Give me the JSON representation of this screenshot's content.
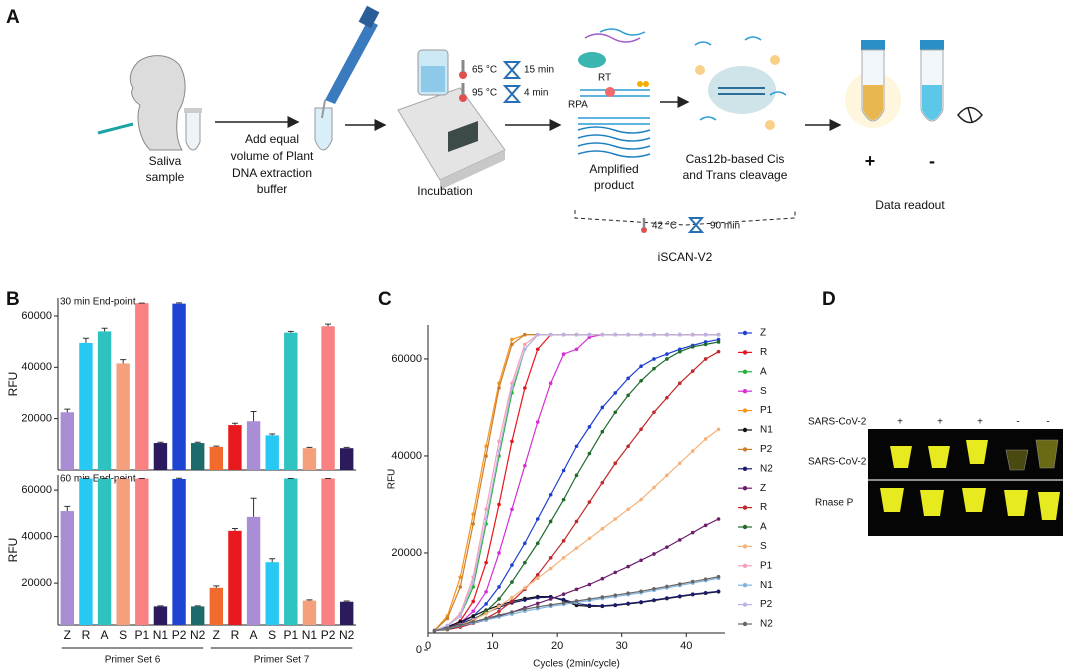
{
  "panel_a": {
    "label": "A",
    "saliva": [
      "Saliva",
      "sample"
    ],
    "buffer_text": [
      "Add equal",
      "volume of Plant",
      "DNA extraction",
      "buffer"
    ],
    "incubation": "Incubation",
    "temps": [
      {
        "temp": "65 °C",
        "time": "15 min"
      },
      {
        "temp": "95 °C",
        "time": "4 min"
      }
    ],
    "rt": "RT",
    "rpa": "RPA",
    "amplified": [
      "Amplified",
      "product"
    ],
    "cas": [
      "Cas12b-based Cis",
      "and Trans cleavage"
    ],
    "readout_signs": [
      "+",
      "-"
    ],
    "readout": "Data readout",
    "isothermal": {
      "temp": "42 °C",
      "time": "90 min"
    },
    "method": "iSCAN-V2"
  },
  "chart_data": [
    {
      "type": "bar",
      "panel": "B",
      "subtitle": "30 min End-point",
      "ylabel": "RFU",
      "ylim": [
        0,
        67000
      ],
      "yticks": [
        20000,
        40000,
        60000
      ],
      "series": [
        {
          "values": [
            22500,
            49500,
            54000,
            41500,
            65000,
            10500,
            64800,
            10500
          ],
          "errors": [
            1200,
            1800,
            1200,
            1500,
            0,
            300,
            300,
            300
          ],
          "colors": [
            "#a98ed6",
            "#27c8f2",
            "#2ec3c0",
            "#f4a07c",
            "#f98181",
            "#2b1a5c",
            "#1e44d4",
            "#1c6a6a"
          ]
        },
        {
          "values": [
            9000,
            17500,
            19000,
            13500,
            53500,
            8500,
            56000,
            8500
          ],
          "errors": [
            300,
            700,
            3800,
            500,
            500,
            300,
            800,
            300
          ],
          "colors": [
            "#f36b2c",
            "#e81a1e",
            "#a98ed6",
            "#27c8f2",
            "#2ec3c0",
            "#f4a07c",
            "#f98181",
            "#2b1a5c"
          ]
        }
      ]
    },
    {
      "type": "bar",
      "subtitle": "60 min End-point",
      "ylabel": "RFU",
      "ylim": [
        2000,
        66500
      ],
      "yticks": [
        20000,
        40000,
        60000
      ],
      "categories": [
        "Z",
        "R",
        "A",
        "S",
        "P1",
        "N1",
        "P2",
        "N2"
      ],
      "series": [
        {
          "name": "Primer Set 6",
          "values": [
            51000,
            65000,
            65000,
            65000,
            65000,
            10000,
            64800,
            10000
          ],
          "errors": [
            2000,
            0,
            0,
            0,
            0,
            200,
            300,
            200
          ],
          "colors": [
            "#a98ed6",
            "#27c8f2",
            "#2ec3c0",
            "#f4a07c",
            "#f98181",
            "#2b1a5c",
            "#1e44d4",
            "#1c6a6a"
          ]
        },
        {
          "name": "Primer Set 7",
          "values": [
            18000,
            42500,
            48500,
            29000,
            65000,
            12500,
            65000,
            12000
          ],
          "errors": [
            800,
            1000,
            8000,
            1500,
            0,
            300,
            0,
            300
          ],
          "colors": [
            "#f36b2c",
            "#e81a1e",
            "#a98ed6",
            "#27c8f2",
            "#2ec3c0",
            "#f4a07c",
            "#f98181",
            "#2b1a5c"
          ]
        }
      ]
    },
    {
      "type": "line",
      "panel": "C",
      "xlabel": "Cycles (2min/cycle)",
      "ylabel": "RFU",
      "xlim": [
        0,
        46
      ],
      "xticks": [
        0,
        10,
        20,
        30,
        40
      ],
      "ylim": [
        3500,
        67000
      ],
      "yticks": [
        0,
        20000,
        40000,
        60000
      ],
      "x": [
        1,
        3,
        5,
        7,
        9,
        11,
        13,
        15,
        17,
        19,
        21,
        23,
        25,
        27,
        29,
        31,
        33,
        35,
        37,
        39,
        41,
        43,
        45
      ],
      "series": [
        {
          "name": "Z",
          "color": "#1f3fd1",
          "values": [
            4000,
            4500,
            5500,
            7000,
            9500,
            13000,
            17500,
            22000,
            27000,
            32000,
            37000,
            42000,
            46000,
            50000,
            53000,
            56000,
            58500,
            60000,
            61000,
            62000,
            62800,
            63500,
            64000
          ]
        },
        {
          "name": "R",
          "color": "#e8141e",
          "values": [
            4000,
            4500,
            6000,
            10000,
            18000,
            30000,
            43000,
            54000,
            62000,
            65000,
            65000,
            65000,
            65000,
            65000,
            65000,
            65000,
            65000,
            65000,
            65000,
            65000,
            65000,
            65000,
            65000
          ]
        },
        {
          "name": "A",
          "color": "#22b33a",
          "values": [
            4000,
            5000,
            7000,
            13000,
            26000,
            40000,
            53000,
            62000,
            65000,
            65000,
            65000,
            65000,
            65000,
            65000,
            65000,
            65000,
            65000,
            65000,
            65000,
            65000,
            65000,
            65000,
            65000
          ]
        },
        {
          "name": "S",
          "color": "#d62ed6",
          "values": [
            4000,
            4500,
            5500,
            8000,
            12000,
            20000,
            29000,
            38000,
            47000,
            55000,
            61000,
            62000,
            64500,
            65000,
            65000,
            65000,
            65000,
            65000,
            65000,
            65000,
            65000,
            65000,
            65000
          ]
        },
        {
          "name": "P1",
          "color": "#f7941d",
          "values": [
            4000,
            7000,
            15000,
            28000,
            42000,
            55000,
            64000,
            65000,
            65000,
            65000,
            65000,
            65000,
            65000,
            65000,
            65000,
            65000,
            65000,
            65000,
            65000,
            65000,
            65000,
            65000,
            65000
          ]
        },
        {
          "name": "N1",
          "color": "#111111",
          "values": [
            4000,
            4800,
            5800,
            7000,
            8200,
            9200,
            10000,
            10600,
            11000,
            11000,
            10200,
            9200,
            9000,
            9000,
            9200,
            9500,
            9800,
            10200,
            10600,
            11000,
            11400,
            11700,
            12000
          ]
        },
        {
          "name": "P2",
          "color": "#c9802e",
          "values": [
            4000,
            6500,
            13000,
            26000,
            40000,
            54000,
            63000,
            65000,
            65000,
            65000,
            65000,
            65000,
            65000,
            65000,
            65000,
            65000,
            65000,
            65000,
            65000,
            65000,
            65000,
            65000,
            65000
          ]
        },
        {
          "name": "N2",
          "color": "#1a1a6e",
          "values": [
            4000,
            4600,
            5400,
            6400,
            7600,
            8800,
            9700,
            10300,
            10800,
            10900,
            10400,
            9600,
            9200,
            9100,
            9300,
            9600,
            9900,
            10300,
            10700,
            11100,
            11500,
            11800,
            12100
          ]
        },
        {
          "name": "Z",
          "color": "#6b1f6b",
          "values": [
            4000,
            4400,
            4900,
            5500,
            6200,
            7000,
            7800,
            8700,
            9600,
            10500,
            11500,
            12500,
            13500,
            14700,
            16000,
            17200,
            18500,
            19800,
            21200,
            22700,
            24200,
            25700,
            27000
          ]
        },
        {
          "name": "R",
          "color": "#c0282b",
          "values": [
            4000,
            4200,
            4700,
            5500,
            6500,
            8000,
            10000,
            12500,
            15500,
            19000,
            22500,
            26500,
            30500,
            34500,
            38500,
            42000,
            45500,
            49000,
            52000,
            55000,
            57500,
            60000,
            61500
          ]
        },
        {
          "name": "A",
          "color": "#1e6b2a",
          "values": [
            4000,
            4300,
            5000,
            6000,
            8000,
            10500,
            14000,
            18000,
            22000,
            26500,
            31000,
            36000,
            40500,
            45000,
            49000,
            52500,
            55500,
            58000,
            60000,
            61500,
            62500,
            63000,
            63500
          ]
        },
        {
          "name": "S",
          "color": "#f5b27a",
          "values": [
            4000,
            4500,
            5200,
            6200,
            7500,
            9000,
            10800,
            12800,
            14800,
            16800,
            19000,
            21000,
            23000,
            25000,
            27000,
            29000,
            31000,
            33500,
            36000,
            38500,
            41000,
            43500,
            45500
          ]
        },
        {
          "name": "P1",
          "color": "#f5a0b8",
          "values": [
            4000,
            5000,
            7500,
            15000,
            29000,
            43000,
            55000,
            63000,
            65000,
            65000,
            65000,
            65000,
            65000,
            65000,
            65000,
            65000,
            65000,
            65000,
            65000,
            65000,
            65000,
            65000,
            65000
          ]
        },
        {
          "name": "N1",
          "color": "#7fb3e0",
          "values": [
            4000,
            4400,
            5000,
            5600,
            6200,
            6800,
            7400,
            8000,
            8500,
            9000,
            9400,
            9800,
            10200,
            10600,
            11000,
            11400,
            11800,
            12300,
            12800,
            13300,
            13800,
            14300,
            14800
          ]
        },
        {
          "name": "P2",
          "color": "#b9b3e8",
          "values": [
            4000,
            5000,
            7000,
            14000,
            27000,
            41000,
            54000,
            62000,
            65000,
            65000,
            65000,
            65000,
            65000,
            65000,
            65000,
            65000,
            65000,
            65000,
            65000,
            65000,
            65000,
            65000,
            65000
          ]
        },
        {
          "name": "N2",
          "color": "#666666",
          "values": [
            4000,
            4500,
            5100,
            5800,
            6500,
            7200,
            7800,
            8400,
            8900,
            9300,
            9700,
            10100,
            10500,
            10900,
            11300,
            11700,
            12100,
            12600,
            13100,
            13600,
            14100,
            14600,
            15100
          ]
        }
      ]
    }
  ],
  "panel_d": {
    "label": "D",
    "header": "SARS-CoV-2",
    "signs": [
      "+",
      "+",
      "+",
      "-",
      "-"
    ],
    "rows": [
      "SARS-CoV-2",
      "Rnase P"
    ]
  }
}
